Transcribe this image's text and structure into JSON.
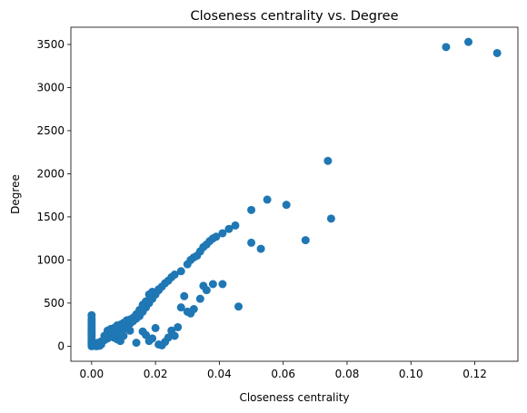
{
  "chart_data": {
    "type": "scatter",
    "title": "Closeness centrality vs. Degree",
    "xlabel": "Closeness centrality",
    "ylabel": "Degree",
    "xlim": [
      -0.0065,
      0.1335
    ],
    "ylim": [
      -175,
      3700
    ],
    "xticks": [
      0.0,
      0.02,
      0.04,
      0.06,
      0.08,
      0.1,
      0.12
    ],
    "xtick_labels": [
      "0.00",
      "0.02",
      "0.04",
      "0.06",
      "0.08",
      "0.10",
      "0.12"
    ],
    "yticks": [
      0,
      500,
      1000,
      1500,
      2000,
      2500,
      3000,
      3500
    ],
    "ytick_labels": [
      "0",
      "500",
      "1000",
      "1500",
      "2000",
      "2500",
      "3000",
      "3500"
    ],
    "grid": false,
    "marker_color": "#1f77b4",
    "series": [
      {
        "points": [
          [
            0.0,
            360
          ],
          [
            0.0,
            320
          ],
          [
            0.0,
            290
          ],
          [
            0.0,
            260
          ],
          [
            0.0,
            230
          ],
          [
            0.0,
            200
          ],
          [
            0.0,
            175
          ],
          [
            0.0,
            150
          ],
          [
            0.0,
            125
          ],
          [
            0.0,
            100
          ],
          [
            0.0,
            75
          ],
          [
            0.0,
            50
          ],
          [
            0.0,
            25
          ],
          [
            0.0,
            0
          ],
          [
            0.0005,
            10
          ],
          [
            0.001,
            5
          ],
          [
            0.0015,
            0
          ],
          [
            0.002,
            10
          ],
          [
            0.0025,
            5
          ],
          [
            0.003,
            20
          ],
          [
            0.001,
            30
          ],
          [
            0.002,
            40
          ],
          [
            0.003,
            55
          ],
          [
            0.004,
            70
          ],
          [
            0.005,
            90
          ],
          [
            0.006,
            110
          ],
          [
            0.007,
            130
          ],
          [
            0.008,
            150
          ],
          [
            0.009,
            180
          ],
          [
            0.01,
            200
          ],
          [
            0.011,
            230
          ],
          [
            0.012,
            260
          ],
          [
            0.013,
            290
          ],
          [
            0.014,
            320
          ],
          [
            0.015,
            350
          ],
          [
            0.016,
            400
          ],
          [
            0.017,
            450
          ],
          [
            0.018,
            500
          ],
          [
            0.019,
            550
          ],
          [
            0.02,
            600
          ],
          [
            0.021,
            650
          ],
          [
            0.022,
            690
          ],
          [
            0.023,
            730
          ],
          [
            0.024,
            760
          ],
          [
            0.025,
            800
          ],
          [
            0.026,
            830
          ],
          [
            0.028,
            870
          ],
          [
            0.03,
            950
          ],
          [
            0.031,
            1000
          ],
          [
            0.032,
            1030
          ],
          [
            0.033,
            1050
          ],
          [
            0.034,
            1100
          ],
          [
            0.035,
            1150
          ],
          [
            0.036,
            1180
          ],
          [
            0.037,
            1220
          ],
          [
            0.038,
            1250
          ],
          [
            0.039,
            1270
          ],
          [
            0.041,
            1310
          ],
          [
            0.043,
            1360
          ],
          [
            0.045,
            1400
          ],
          [
            0.05,
            1580
          ],
          [
            0.055,
            1700
          ],
          [
            0.061,
            1640
          ],
          [
            0.074,
            2150
          ],
          [
            0.005,
            180
          ],
          [
            0.006,
            200
          ],
          [
            0.007,
            210
          ],
          [
            0.008,
            240
          ],
          [
            0.009,
            250
          ],
          [
            0.01,
            270
          ],
          [
            0.011,
            300
          ],
          [
            0.012,
            310
          ],
          [
            0.013,
            330
          ],
          [
            0.014,
            370
          ],
          [
            0.015,
            420
          ],
          [
            0.016,
            480
          ],
          [
            0.017,
            520
          ],
          [
            0.018,
            600
          ],
          [
            0.019,
            630
          ],
          [
            0.02,
            620
          ],
          [
            0.021,
            660
          ],
          [
            0.004,
            120
          ],
          [
            0.005,
            150
          ],
          [
            0.006,
            160
          ],
          [
            0.007,
            100
          ],
          [
            0.008,
            80
          ],
          [
            0.009,
            60
          ],
          [
            0.01,
            120
          ],
          [
            0.012,
            180
          ],
          [
            0.014,
            40
          ],
          [
            0.016,
            170
          ],
          [
            0.017,
            130
          ],
          [
            0.018,
            60
          ],
          [
            0.019,
            90
          ],
          [
            0.02,
            210
          ],
          [
            0.021,
            20
          ],
          [
            0.022,
            10
          ],
          [
            0.023,
            50
          ],
          [
            0.024,
            100
          ],
          [
            0.025,
            180
          ],
          [
            0.026,
            120
          ],
          [
            0.027,
            220
          ],
          [
            0.028,
            450
          ],
          [
            0.029,
            580
          ],
          [
            0.03,
            400
          ],
          [
            0.031,
            380
          ],
          [
            0.032,
            430
          ],
          [
            0.034,
            550
          ],
          [
            0.035,
            700
          ],
          [
            0.036,
            650
          ],
          [
            0.038,
            720
          ],
          [
            0.041,
            720
          ],
          [
            0.046,
            460
          ],
          [
            0.05,
            1200
          ],
          [
            0.053,
            1130
          ],
          [
            0.067,
            1230
          ],
          [
            0.075,
            1480
          ],
          [
            0.111,
            3470
          ],
          [
            0.118,
            3530
          ],
          [
            0.127,
            3400
          ]
        ]
      }
    ]
  }
}
